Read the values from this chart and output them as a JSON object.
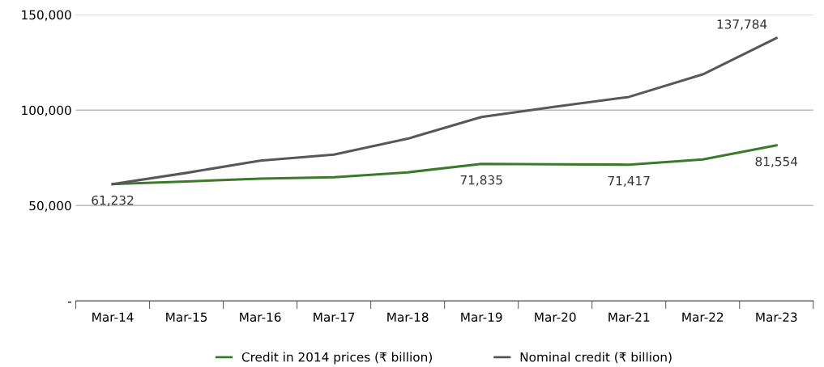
{
  "chart_data": {
    "type": "line",
    "categories": [
      "Mar-14",
      "Mar-15",
      "Mar-16",
      "Mar-17",
      "Mar-18",
      "Mar-19",
      "Mar-20",
      "Mar-21",
      "Mar-22",
      "Mar-23"
    ],
    "series": [
      {
        "name": "Credit in 2014 prices (₹ billion)",
        "color": "#3b7a2b",
        "values": [
          61232,
          62600,
          64100,
          64800,
          67400,
          71835,
          71600,
          71417,
          74100,
          81554
        ],
        "value_labels": [
          "61,232",
          null,
          null,
          null,
          null,
          "71,835",
          null,
          "71,417",
          null,
          "81,554"
        ]
      },
      {
        "name": "Nominal credit (₹ billion)",
        "color": "#58585a",
        "values": [
          61232,
          67100,
          73500,
          76700,
          85000,
          96400,
          101800,
          106900,
          118700,
          137784
        ],
        "value_labels": [
          null,
          null,
          null,
          null,
          null,
          null,
          null,
          null,
          null,
          "137,784"
        ]
      }
    ],
    "ylim": [
      0,
      150000
    ],
    "yticks": [
      {
        "value": 0,
        "label": "-"
      },
      {
        "value": 50000,
        "label": "50,000"
      },
      {
        "value": 100000,
        "label": "100,000"
      },
      {
        "value": 150000,
        "label": "150,000"
      }
    ],
    "grid": "y",
    "legend": "bottom",
    "marker": "none",
    "line_style": "solid"
  }
}
